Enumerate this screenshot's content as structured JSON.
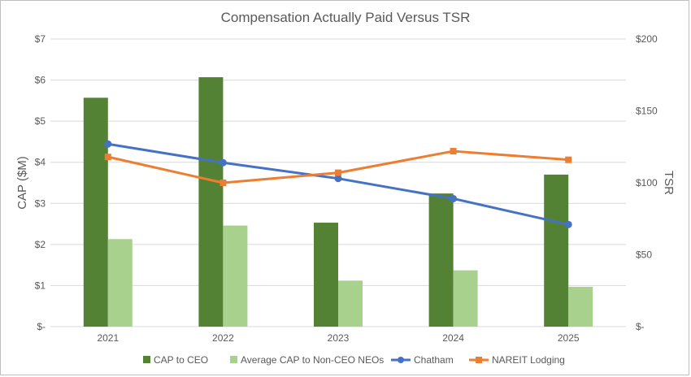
{
  "chart_data": {
    "type": "bar",
    "title": "Compensation Actually Paid Versus TSR",
    "categories": [
      "2021",
      "2022",
      "2023",
      "2024",
      "2025"
    ],
    "ylabel": "CAP ($M)",
    "y2label": "TSR",
    "ylim": [
      0,
      7
    ],
    "y2lim": [
      0,
      200
    ],
    "yticks": [
      "$-",
      "$1",
      "$2",
      "$3",
      "$4",
      "$5",
      "$6",
      "$7"
    ],
    "y2ticks": [
      "$-",
      "$50",
      "$100",
      "$150",
      "$200"
    ],
    "grid": true,
    "legend_position": "bottom",
    "series": [
      {
        "name": "CAP to CEO",
        "type": "bar",
        "axis": "left",
        "color": "#548235",
        "values": [
          5.57,
          6.07,
          2.53,
          3.24,
          3.7
        ]
      },
      {
        "name": "Average CAP to Non-CEO NEOs",
        "type": "bar",
        "axis": "left",
        "color": "#a9d18e",
        "values": [
          2.13,
          2.46,
          1.12,
          1.37,
          0.97
        ]
      },
      {
        "name": "Chatham",
        "type": "line",
        "axis": "right",
        "color": "#4472c4",
        "marker": "circle",
        "values": [
          127,
          114,
          103,
          89,
          71
        ]
      },
      {
        "name": "NAREIT Lodging",
        "type": "line",
        "axis": "right",
        "color": "#ed7d31",
        "marker": "square",
        "values": [
          118,
          100,
          107,
          122,
          116
        ]
      }
    ]
  }
}
